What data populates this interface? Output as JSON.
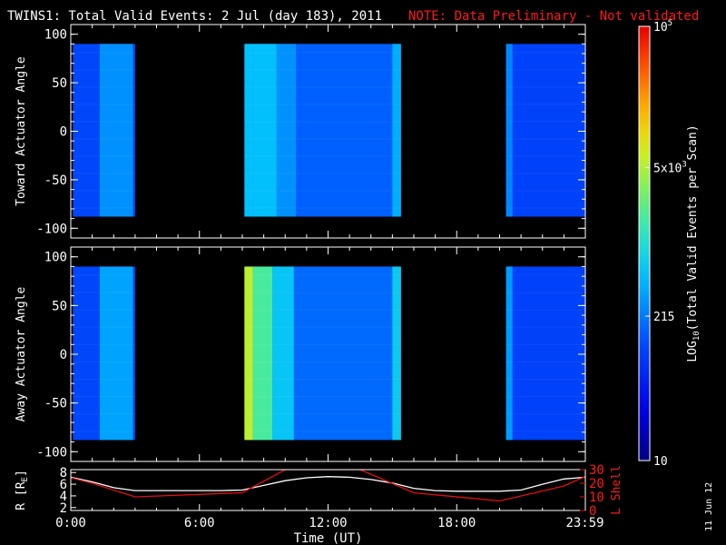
{
  "title": "TWINS1: Total Valid Events:  2 Jul (day 183), 2011",
  "note": "NOTE: Data Preliminary - Not validated",
  "stamp": "11 Jun 12",
  "colors": {
    "background": "#000000",
    "axes": "#ffffff",
    "note": "#ff1a1a",
    "r_line": "#ffffff",
    "l_line": "#e01010"
  },
  "chart_data": [
    {
      "type": "heatmap",
      "name": "toward",
      "ylabel": "Toward Actuator Angle",
      "ylim": [
        -110,
        110
      ],
      "yticks": [
        "100",
        "50",
        "0",
        "-50",
        "-100"
      ],
      "data_y_range": [
        -88,
        90
      ],
      "xlim": [
        0,
        24
      ],
      "segments": [
        {
          "start": 0.1,
          "end": 3.0,
          "level": 2.05,
          "bands": [
            {
              "start": 1.35,
              "end": 2.9,
              "level": 2.45
            }
          ]
        },
        {
          "start": 8.1,
          "end": 15.4,
          "level": 2.2,
          "bands": [
            {
              "start": 8.1,
              "end": 9.6,
              "level": 2.7
            },
            {
              "start": 9.6,
              "end": 10.5,
              "level": 2.45
            },
            {
              "start": 15.0,
              "end": 15.4,
              "level": 2.6
            }
          ]
        },
        {
          "start": 20.3,
          "end": 24.0,
          "level": 2.0,
          "bands": [
            {
              "start": 20.3,
              "end": 20.6,
              "level": 2.4
            }
          ]
        }
      ]
    },
    {
      "type": "heatmap",
      "name": "away",
      "ylabel": "Away Actuator Angle",
      "ylim": [
        -110,
        110
      ],
      "yticks": [
        "100",
        "50",
        "0",
        "-50",
        "-100"
      ],
      "data_y_range": [
        -88,
        90
      ],
      "xlim": [
        0,
        24
      ],
      "segments": [
        {
          "start": 0.1,
          "end": 3.0,
          "level": 2.05,
          "bands": [
            {
              "start": 1.35,
              "end": 2.9,
              "level": 2.55
            }
          ]
        },
        {
          "start": 8.1,
          "end": 15.4,
          "level": 2.25,
          "bands": [
            {
              "start": 8.1,
              "end": 8.5,
              "level": 3.75
            },
            {
              "start": 8.5,
              "end": 9.4,
              "level": 3.25
            },
            {
              "start": 9.4,
              "end": 10.4,
              "level": 2.75
            },
            {
              "start": 15.0,
              "end": 15.4,
              "level": 2.8
            }
          ]
        },
        {
          "start": 20.3,
          "end": 24.0,
          "level": 2.0,
          "bands": [
            {
              "start": 20.3,
              "end": 20.6,
              "level": 2.5
            }
          ]
        }
      ]
    },
    {
      "type": "line",
      "name": "orbit",
      "xlabel": "Time (UT)",
      "xlim": [
        0,
        24
      ],
      "xticks": [
        "0:00",
        "6:00",
        "12:00",
        "18:00",
        "23:59"
      ],
      "ylabel_left": "R [R",
      "ylabel_left_sub": "E",
      "ylabel_left_end": "]",
      "ylim_left": [
        1.5,
        8.5
      ],
      "yticks_left": [
        "8",
        "6",
        "4",
        "2"
      ],
      "ylabel_right": "L Shell",
      "ylim_right": [
        0,
        30
      ],
      "yticks_right": [
        "30",
        "20",
        "10",
        "0"
      ],
      "series": [
        {
          "axis": "left",
          "x": [
            0,
            1,
            2,
            3,
            4,
            5,
            6,
            7,
            8,
            9,
            10,
            11,
            12,
            13,
            14,
            15,
            16,
            17,
            18,
            19,
            20,
            21,
            22,
            23,
            24
          ],
          "values": [
            7.2,
            6.4,
            5.4,
            4.9,
            4.9,
            4.9,
            4.9,
            4.9,
            5.0,
            5.8,
            6.6,
            7.1,
            7.3,
            7.2,
            6.8,
            6.2,
            5.3,
            4.9,
            4.8,
            4.8,
            4.8,
            5.0,
            6.0,
            6.9,
            7.2
          ]
        },
        {
          "axis": "right",
          "x": [
            0,
            1,
            3,
            8,
            10.0,
            13.5,
            16,
            20,
            23,
            24
          ],
          "values": [
            24,
            20,
            10,
            13,
            30,
            30,
            13,
            7,
            18,
            25
          ]
        }
      ]
    }
  ],
  "colorbar": {
    "label_main": "LOG",
    "label_sub": "10",
    "label_rest": "(Total Valid Events per Scan)",
    "range_log": [
      1,
      5
    ],
    "ticks": [
      {
        "level": 5,
        "base": "10",
        "exp": "5"
      },
      {
        "level": 3.7,
        "base": "5x10",
        "exp": "3"
      },
      {
        "level": 2.33,
        "base": "215",
        "exp": ""
      },
      {
        "level": 1,
        "base": "10",
        "exp": ""
      }
    ]
  }
}
